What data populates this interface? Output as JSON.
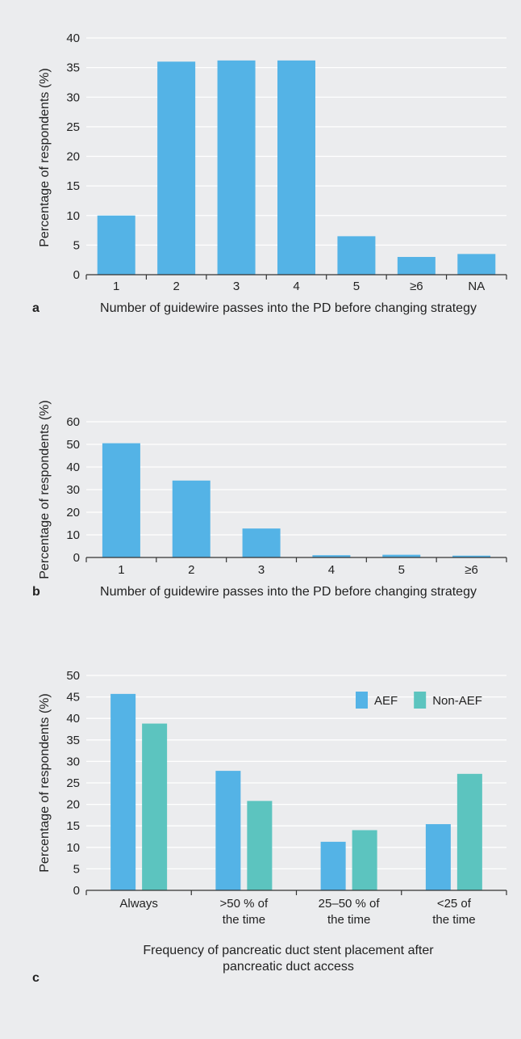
{
  "chart_data": [
    {
      "type": "bar",
      "panel": "a",
      "categories": [
        "1",
        "2",
        "3",
        "4",
        "5",
        "≥6",
        "NA"
      ],
      "series": [
        {
          "values": [
            10,
            36,
            36.2,
            36.2,
            6.5,
            3,
            3.5
          ],
          "color": "#54b3e6"
        }
      ],
      "ylabel": "Percentage of respondents (%)",
      "xlabel": "Number of guidewire passes into the PD before changing strategy",
      "ylim": [
        0,
        40
      ],
      "yticks": [
        0,
        5,
        10,
        15,
        20,
        25,
        30,
        35,
        40
      ],
      "grid": true
    },
    {
      "type": "bar",
      "panel": "b",
      "categories": [
        "1",
        "2",
        "3",
        "4",
        "5",
        "≥6"
      ],
      "series": [
        {
          "values": [
            50.5,
            34,
            12.8,
            1,
            1.2,
            0.8
          ],
          "color": "#54b3e6"
        }
      ],
      "ylabel": "Percentage of respondents (%)",
      "xlabel": "Number of guidewire passes into the PD before changing strategy",
      "ylim": [
        0,
        60
      ],
      "yticks": [
        0,
        10,
        20,
        30,
        40,
        50,
        60
      ],
      "grid": true
    },
    {
      "type": "bar",
      "panel": "c",
      "categories": [
        [
          "Always"
        ],
        [
          ">50 % of",
          "the time"
        ],
        [
          "25–50 % of",
          "the time"
        ],
        [
          "<25 of",
          "the time"
        ]
      ],
      "series": [
        {
          "name": "AEF",
          "values": [
            45.7,
            27.8,
            11.3,
            15.4
          ],
          "color": "#54b3e6"
        },
        {
          "name": "Non-AEF",
          "values": [
            38.8,
            20.8,
            14,
            27.1
          ],
          "color": "#5cc4bf"
        }
      ],
      "ylabel": "Percentage of respondents (%)",
      "xlabel": [
        "Frequency of pancreatic duct stent placement after",
        "pancreatic duct access"
      ],
      "ylim": [
        0,
        50
      ],
      "yticks": [
        0,
        5,
        10,
        15,
        20,
        25,
        30,
        35,
        40,
        45,
        50
      ],
      "grid": true,
      "legend": "top-right"
    }
  ]
}
